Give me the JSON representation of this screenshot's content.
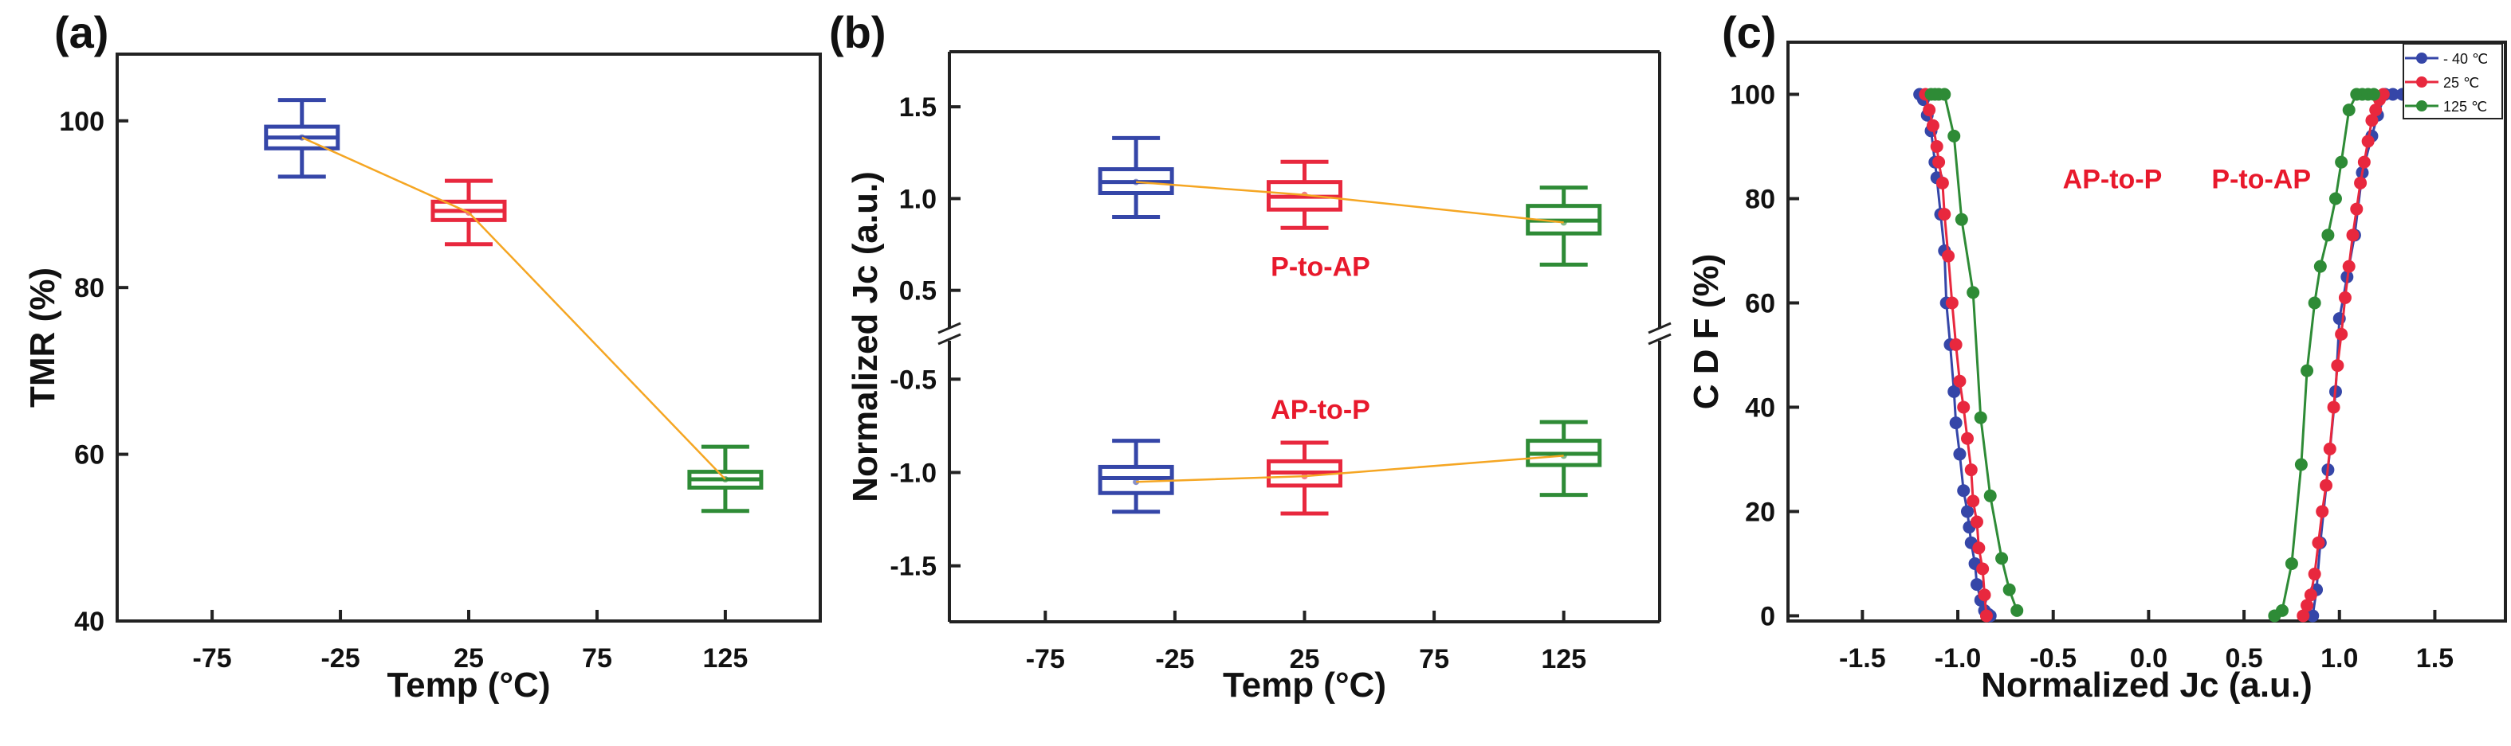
{
  "chart_data": [
    {
      "id": "a",
      "type": "box",
      "panel_label": "(a)",
      "title": "",
      "xlabel": "Temp (°C)",
      "ylabel": "TMR (%)",
      "xlim": [
        -112,
        162
      ],
      "ylim": [
        40,
        108
      ],
      "xticks": [
        -75,
        -25,
        25,
        75,
        125
      ],
      "xtick_labels": [
        "-75",
        "-25",
        "25",
        "75",
        "125"
      ],
      "yticks": [
        40,
        60,
        80,
        100
      ],
      "ytick_labels": [
        "40",
        "60",
        "80",
        "100"
      ],
      "grid": false,
      "mean_line_color": "#f5a623",
      "series": [
        {
          "name": "-40 °C",
          "x": -40,
          "color": "#3546a8",
          "whisker_low": 93.3,
          "q1": 96.7,
          "median": 98.0,
          "q3": 99.3,
          "whisker_high": 102.5,
          "mean": 98.0
        },
        {
          "name": "25 °C",
          "x": 25,
          "color": "#e8283e",
          "whisker_low": 85.2,
          "q1": 88.1,
          "median": 89.2,
          "q3": 90.3,
          "whisker_high": 92.8,
          "mean": 89.0
        },
        {
          "name": "125 °C",
          "x": 125,
          "color": "#2e8b36",
          "whisker_low": 53.2,
          "q1": 56.0,
          "median": 57.0,
          "q3": 57.9,
          "whisker_high": 60.9,
          "mean": 57.0
        }
      ]
    },
    {
      "id": "b",
      "type": "box",
      "panel_label": "(b)",
      "title": "",
      "xlabel": "Temp (°C)",
      "ylabel": "Normalized Jc (a.u.)",
      "xlim": [
        -112,
        162
      ],
      "ylim_upper": [
        0.26,
        1.8
      ],
      "ylim_lower": [
        -1.8,
        -0.26
      ],
      "axis_break": true,
      "xticks": [
        -75,
        -25,
        25,
        75,
        125
      ],
      "xtick_labels": [
        "-75",
        "-25",
        "25",
        "75",
        "125"
      ],
      "yticks": [
        -1.5,
        -1.0,
        -0.5,
        0.5,
        1.0,
        1.5
      ],
      "ytick_labels": [
        "-1.5",
        "-1.0",
        "-0.5",
        "0.5",
        "1.0",
        "1.5"
      ],
      "grid": false,
      "annotations": [
        {
          "text": "P-to-AP",
          "x": 25,
          "y": 0.63
        },
        {
          "text": "AP-to-P",
          "x": 25,
          "y": -0.66
        }
      ],
      "mean_line_color": "#f5a623",
      "series": [
        {
          "name": "P-to-AP -40 °C",
          "group": "P-to-AP",
          "x": -40,
          "color": "#3546a8",
          "whisker_low": 0.9,
          "q1": 1.03,
          "median": 1.09,
          "q3": 1.16,
          "whisker_high": 1.33,
          "mean": 1.09
        },
        {
          "name": "P-to-AP 25 °C",
          "group": "P-to-AP",
          "x": 25,
          "color": "#e8283e",
          "whisker_low": 0.84,
          "q1": 0.94,
          "median": 1.01,
          "q3": 1.09,
          "whisker_high": 1.2,
          "mean": 1.02
        },
        {
          "name": "P-to-AP 125 °C",
          "group": "P-to-AP",
          "x": 125,
          "color": "#2e8b36",
          "whisker_low": 0.64,
          "q1": 0.81,
          "median": 0.88,
          "q3": 0.96,
          "whisker_high": 1.06,
          "mean": 0.87
        },
        {
          "name": "AP-to-P -40 °C",
          "group": "AP-to-P",
          "x": -40,
          "color": "#3546a8",
          "whisker_low": -1.21,
          "q1": -1.11,
          "median": -1.03,
          "q3": -0.97,
          "whisker_high": -0.83,
          "mean": -1.05
        },
        {
          "name": "AP-to-P 25 °C",
          "group": "AP-to-P",
          "x": 25,
          "color": "#e8283e",
          "whisker_low": -1.22,
          "q1": -1.07,
          "median": -1.0,
          "q3": -0.94,
          "whisker_high": -0.84,
          "mean": -1.02
        },
        {
          "name": "AP-to-P 125 °C",
          "group": "AP-to-P",
          "x": 125,
          "color": "#2e8b36",
          "whisker_low": -1.12,
          "q1": -0.96,
          "median": -0.9,
          "q3": -0.83,
          "whisker_high": -0.73,
          "mean": -0.91
        }
      ]
    },
    {
      "id": "c",
      "type": "line",
      "panel_label": "(c)",
      "title": "",
      "xlabel": "Normalized Jc (a.u.)",
      "ylabel": "C D F (%)",
      "xlim": [
        -1.89,
        1.87
      ],
      "ylim": [
        -1,
        110
      ],
      "xticks": [
        -1.5,
        -1.0,
        -0.5,
        0.0,
        0.5,
        1.0,
        1.5
      ],
      "xtick_labels": [
        "-1.5",
        "-1.0",
        "-0.5",
        "0.0",
        "0.5",
        "1.0",
        "1.5"
      ],
      "yticks": [
        0,
        20,
        40,
        60,
        80,
        100
      ],
      "ytick_labels": [
        "0",
        "20",
        "40",
        "60",
        "80",
        "100"
      ],
      "grid": false,
      "legend": {
        "position": "top-right",
        "entries": [
          "- 40 ℃",
          "25 ℃",
          "125 ℃"
        ]
      },
      "annotations": [
        {
          "text": "AP-to-P",
          "x": -0.45,
          "y": 82
        },
        {
          "text": "P-to-AP",
          "x": 0.33,
          "y": 82
        }
      ],
      "series": [
        {
          "name": "- 40 ℃",
          "color": "#3546a8",
          "branch": "AP-to-P",
          "x": [
            -1.2,
            -1.18,
            -1.16,
            -1.14,
            -1.12,
            -1.11,
            -1.09,
            -1.07,
            -1.06,
            -1.04,
            -1.02,
            -1.01,
            -0.99,
            -0.97,
            -0.95,
            -0.94,
            -0.93,
            -0.91,
            -0.9,
            -0.88,
            -0.86,
            -0.84,
            -0.83
          ],
          "y": [
            100,
            99,
            96,
            93,
            87,
            84,
            77,
            70,
            60,
            52,
            43,
            37,
            31,
            24,
            20,
            17,
            14,
            10,
            6,
            3,
            1,
            0.3,
            0
          ]
        },
        {
          "name": "25 ℃",
          "color": "#e8283e",
          "branch": "AP-to-P",
          "x": [
            -1.17,
            -1.15,
            -1.13,
            -1.11,
            -1.1,
            -1.08,
            -1.07,
            -1.05,
            -1.03,
            -1.01,
            -0.99,
            -0.97,
            -0.95,
            -0.93,
            -0.92,
            -0.9,
            -0.89,
            -0.87,
            -0.86,
            -0.85
          ],
          "y": [
            100,
            97,
            94,
            90,
            87,
            83,
            77,
            69,
            60,
            52,
            45,
            40,
            34,
            28,
            22,
            18,
            13,
            9,
            4,
            0
          ]
        },
        {
          "name": "125 ℃",
          "color": "#2e8b36",
          "branch": "AP-to-P",
          "x": [
            -1.14,
            -1.12,
            -1.1,
            -1.07,
            -1.02,
            -0.98,
            -0.92,
            -0.88,
            -0.83,
            -0.77,
            -0.73,
            -0.69
          ],
          "y": [
            100,
            100,
            100,
            100,
            92,
            76,
            62,
            38,
            23,
            11,
            5,
            1
          ]
        },
        {
          "name": "- 40 ℃",
          "color": "#3546a8",
          "branch": "P-to-AP",
          "x": [
            0.86,
            0.88,
            0.9,
            0.94,
            0.98,
            1.0,
            1.04,
            1.08,
            1.12,
            1.17,
            1.2,
            1.24,
            1.28,
            1.33
          ],
          "y": [
            0,
            5,
            14,
            28,
            43,
            57,
            65,
            73,
            85,
            92,
            96,
            100,
            100,
            100
          ]
        },
        {
          "name": "25 ℃",
          "color": "#e8283e",
          "branch": "P-to-AP",
          "x": [
            0.81,
            0.83,
            0.85,
            0.87,
            0.89,
            0.91,
            0.93,
            0.95,
            0.97,
            0.99,
            1.01,
            1.03,
            1.05,
            1.07,
            1.09,
            1.11,
            1.13,
            1.15,
            1.17,
            1.19,
            1.21,
            1.23
          ],
          "y": [
            0,
            2,
            4,
            8,
            14,
            20,
            25,
            32,
            40,
            48,
            54,
            61,
            67,
            73,
            78,
            83,
            87,
            91,
            95,
            97,
            99,
            100
          ]
        },
        {
          "name": "125 ℃",
          "color": "#2e8b36",
          "branch": "P-to-AP",
          "x": [
            0.66,
            0.7,
            0.75,
            0.8,
            0.83,
            0.87,
            0.9,
            0.94,
            0.98,
            1.01,
            1.05,
            1.09,
            1.12,
            1.15,
            1.18
          ],
          "y": [
            0,
            1,
            10,
            29,
            47,
            60,
            67,
            73,
            80,
            87,
            97,
            100,
            100,
            100,
            100
          ]
        }
      ]
    }
  ]
}
